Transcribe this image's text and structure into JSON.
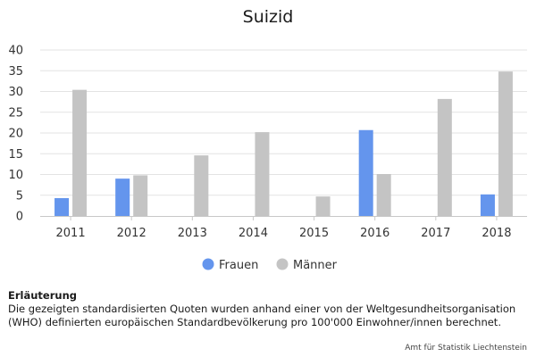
{
  "chart_data": {
    "type": "bar",
    "title": "Suizid",
    "categories": [
      "2011",
      "2012",
      "2013",
      "2014",
      "2015",
      "2016",
      "2017",
      "2018"
    ],
    "series": [
      {
        "name": "Frauen",
        "color": "#6495ed",
        "values": [
          4.3,
          9.0,
          null,
          null,
          null,
          20.7,
          null,
          5.2
        ]
      },
      {
        "name": "Männer",
        "color": "#c4c4c4",
        "values": [
          30.4,
          9.8,
          14.6,
          20.2,
          4.7,
          10.1,
          28.2,
          34.8
        ]
      }
    ],
    "ylim": [
      0,
      40
    ],
    "yticks": [
      0,
      5,
      10,
      15,
      20,
      25,
      30,
      35,
      40
    ],
    "grid": true,
    "legend_position": "bottom-center"
  },
  "note": {
    "heading": "Erläuterung",
    "text": "Die gezeigten standardisierten Quoten wurden anhand einer von der Weltgesundheitsorganisation (WHO) definierten europäischen Standardbevölkerung pro 100'000 Einwohner/innen berechnet."
  },
  "source": "Amt für Statistik Liechtenstein"
}
